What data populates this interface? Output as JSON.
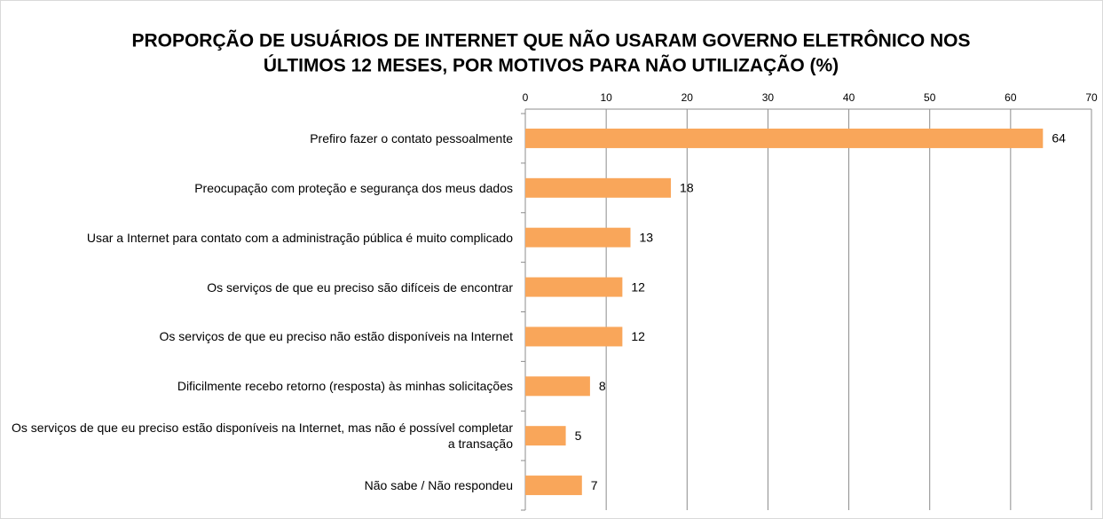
{
  "chart_data": {
    "type": "bar",
    "orientation": "horizontal",
    "title": [
      "PROPORÇÃO DE USUÁRIOS DE INTERNET QUE NÃO USARAM GOVERNO ELETRÔNICO NOS",
      "ÚLTIMOS 12 MESES, POR MOTIVOS PARA NÃO UTILIZAÇÃO (%)"
    ],
    "categories": [
      "Prefiro fazer o contato pessoalmente",
      "Preocupação com proteção e segurança dos meus dados",
      "Usar a Internet para contato com a administração pública é muito complicado",
      "Os serviços de que eu preciso são difíceis de encontrar",
      "Os serviços de que eu preciso não estão disponíveis na Internet",
      "Dificilmente recebo retorno (resposta) às minhas solicitações",
      "Os serviços de que eu preciso estão disponíveis na Internet, mas não é possível completar a transação",
      "Não sabe / Não respondeu"
    ],
    "values": [
      64,
      18,
      13,
      12,
      12,
      8,
      5,
      7
    ],
    "color": "#f9a65a",
    "xlim": [
      0,
      70
    ],
    "xticks": [
      0,
      10,
      20,
      30,
      40,
      50,
      60,
      70
    ],
    "grid": true
  }
}
